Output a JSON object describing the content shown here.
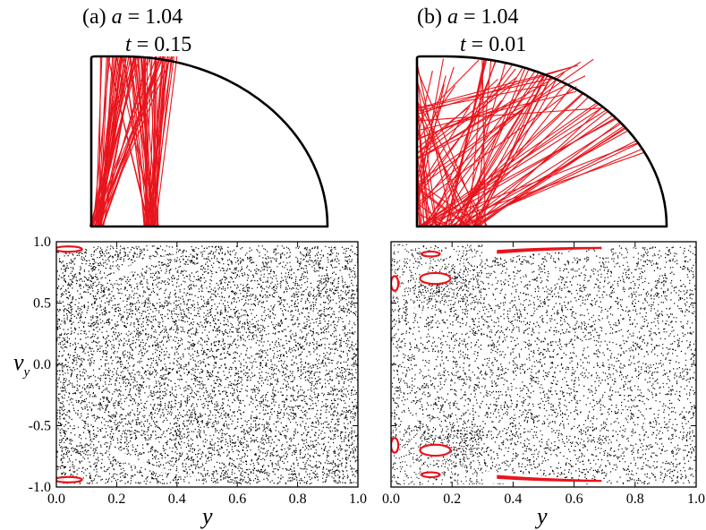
{
  "colors": {
    "orbit": "#e8141c",
    "chaos": "#000000",
    "frame": "#000000",
    "island": "#e8141c"
  },
  "chart_data": [
    {
      "type": "diagram",
      "panel": "a",
      "title_line1": "(a) a = 1.04",
      "title_line2": "t = 0.15",
      "title_parts": {
        "prefix": "(a) ",
        "a_var": "a",
        "a_eq": " = 1.04",
        "t_var": "t",
        "t_eq": " = 0.15"
      },
      "a": 1.04,
      "t": 0.15
    },
    {
      "type": "diagram",
      "panel": "b",
      "title_line1": "(b) a = 1.04",
      "title_line2": "t = 0.01",
      "title_parts": {
        "prefix": "(b) ",
        "a_var": "a",
        "a_eq": " = 1.04",
        "t_var": "t",
        "t_eq": " = 0.01"
      },
      "a": 1.04,
      "t": 0.01
    },
    {
      "type": "scatter",
      "panel": "a",
      "xlabel": "y",
      "ylabel": "v",
      "ylabel_sub": "y",
      "xlim": [
        0.0,
        1.0
      ],
      "ylim": [
        -1.0,
        1.0
      ],
      "xticks": [
        "0.0",
        "0.2",
        "0.4",
        "0.6",
        "0.8",
        "1.0"
      ],
      "yticks": [
        "-1.0",
        "-0.5",
        "0.0",
        "0.5",
        "1.0"
      ]
    },
    {
      "type": "scatter",
      "panel": "b",
      "xlabel": "y",
      "xlim": [
        0.0,
        1.0
      ],
      "ylim": [
        -1.0,
        1.0
      ],
      "xticks": [
        "0.0",
        "0.2",
        "0.4",
        "0.6",
        "0.8",
        "1.0"
      ]
    }
  ]
}
